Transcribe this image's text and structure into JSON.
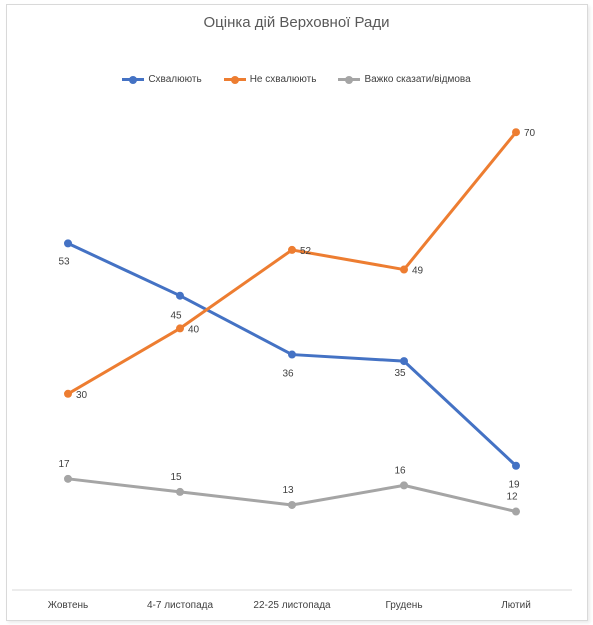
{
  "chart_data": {
    "type": "line",
    "title": "Оцінка дій Верховної Ради",
    "categories": [
      "Жовтень",
      "4-7 листопада",
      "22-25 листопада",
      "Грудень",
      "Лютий"
    ],
    "series": [
      {
        "name": "Схвалюють",
        "color": "#4472c4",
        "values": [
          53,
          45,
          36,
          35,
          19
        ]
      },
      {
        "name": "Не схвалюють",
        "color": "#ed7d31",
        "values": [
          30,
          40,
          52,
          49,
          70
        ]
      },
      {
        "name": "Важко сказати/відмова",
        "color": "#a5a5a5",
        "values": [
          17,
          15,
          13,
          16,
          12
        ]
      }
    ],
    "legend_position": "top",
    "grid": false,
    "y_axis_visible": false,
    "ylim": [
      0,
      75
    ]
  }
}
